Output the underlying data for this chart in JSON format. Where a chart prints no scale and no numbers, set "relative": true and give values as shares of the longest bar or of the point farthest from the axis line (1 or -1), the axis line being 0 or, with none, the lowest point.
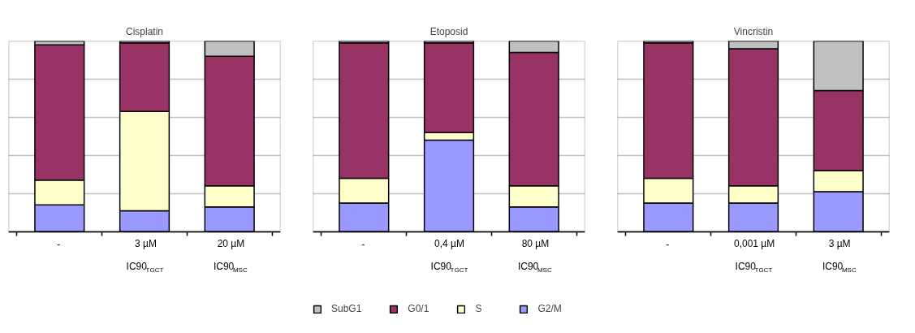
{
  "chart_data": [
    {
      "type": "bar",
      "title": "Cisplatin",
      "stacked": true,
      "relative": true,
      "grid": "y",
      "categories": [
        "-",
        "3 µM\nIC90$_{TGCT}$",
        "20 µM\nIC90$_{MSC}$"
      ],
      "series": [
        {
          "color": "#9999ff",
          "values": [
            0.14,
            0.11,
            0.13
          ]
        },
        {
          "color": "#ffffcc",
          "values": [
            0.13,
            0.52,
            0.11
          ]
        },
        {
          "color": "#993366",
          "values": [
            0.71,
            0.36,
            0.68
          ]
        },
        {
          "color": "#c0c0c0",
          "values": [
            0.02,
            0.01,
            0.08
          ]
        }
      ]
    },
    {
      "type": "bar",
      "title": "Etoposid",
      "stacked": true,
      "relative": true,
      "grid": "y",
      "legend": "bottom",
      "categories": [
        "-",
        "0,4 µM\nIC90$_{TGCT}$",
        "80 µM\nIC90$_{MSC}$"
      ],
      "series": [
        {
          "name": "G2/M",
          "color": "#9999ff",
          "values": [
            0.15,
            0.48,
            0.13
          ]
        },
        {
          "name": "S",
          "color": "#ffffcc",
          "values": [
            0.13,
            0.04,
            0.11
          ]
        },
        {
          "name": "G0/1",
          "color": "#993366",
          "values": [
            0.71,
            0.47,
            0.7
          ]
        },
        {
          "name": "SubG1",
          "color": "#c0c0c0",
          "values": [
            0.01,
            0.01,
            0.06
          ]
        }
      ]
    },
    {
      "type": "bar",
      "title": "Vincristin",
      "stacked": true,
      "relative": true,
      "grid": "y",
      "categories": [
        "-",
        "0,001 µM\nIC90$_{TGCT}$",
        "3 µM\nIC90$_{MSC}$"
      ],
      "series": [
        {
          "color": "#9999ff",
          "values": [
            0.15,
            0.15,
            0.21
          ]
        },
        {
          "color": "#ffffcc",
          "values": [
            0.13,
            0.09,
            0.11
          ]
        },
        {
          "color": "#993366",
          "values": [
            0.71,
            0.72,
            0.42
          ]
        },
        {
          "color": "#c0c0c0",
          "values": [
            0.01,
            0.04,
            0.26
          ]
        }
      ]
    }
  ]
}
